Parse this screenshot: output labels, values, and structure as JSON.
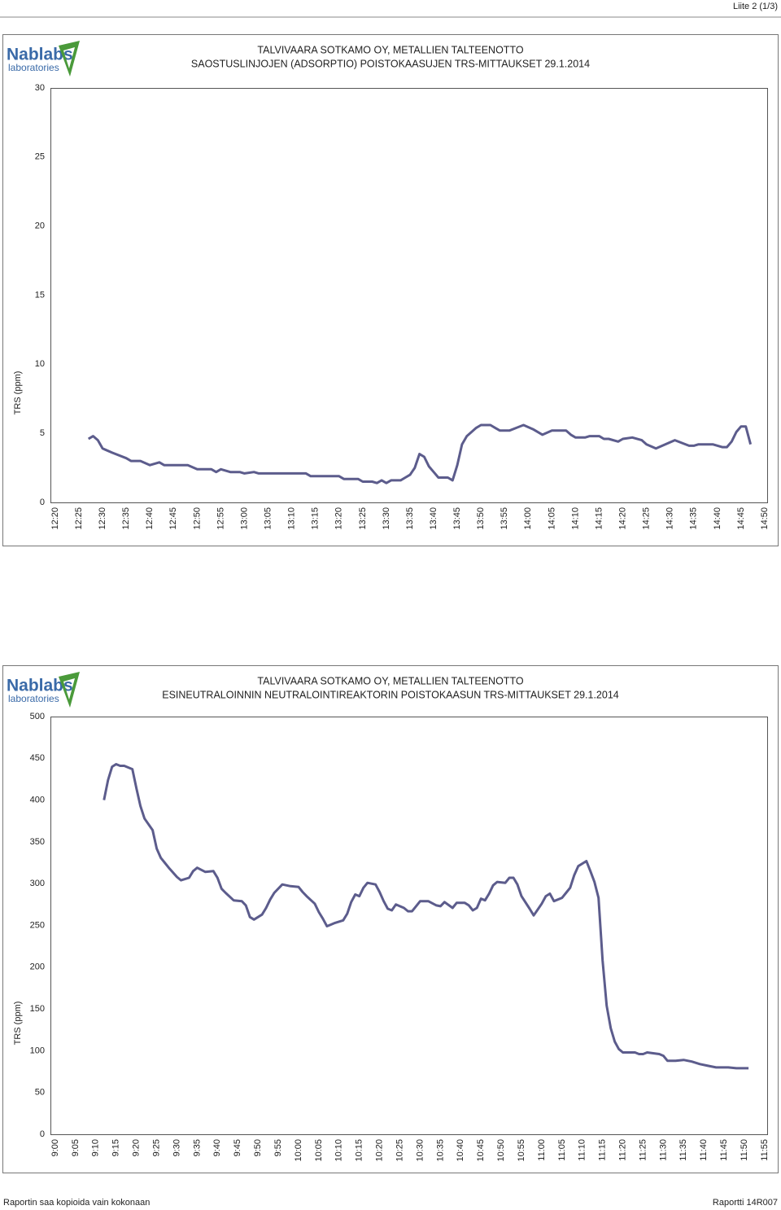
{
  "header": {
    "page": "Liite 2 (1/3)"
  },
  "logo": {
    "name": "Nablabs",
    "sub": "laboratories"
  },
  "chart_data": [
    {
      "type": "line",
      "title": "TALVIVAARA SOTKAMO OY, METALLIEN TALTEENOTTO",
      "subtitle": "SAOSTUSLINJOJEN (ADSORPTIO) POISTOKAASUJEN TRS-MITTAUKSET 29.1.2014",
      "y_label": "TRS (ppm)",
      "color": "#5c5c8c",
      "x": [
        "12:27",
        "12:28",
        "12:29",
        "12:30",
        "12:32",
        "12:35",
        "12:36",
        "12:38",
        "12:40",
        "12:42",
        "12:43",
        "12:48",
        "12:50",
        "12:53",
        "12:54",
        "12:55",
        "12:57",
        "12:59",
        "13:00",
        "13:02",
        "13:03",
        "13:13",
        "13:14",
        "13:20",
        "13:21",
        "13:24",
        "13:25",
        "13:27",
        "13:28",
        "13:29",
        "13:30",
        "13:31",
        "13:33",
        "13:34",
        "13:35",
        "13:36",
        "13:37",
        "13:38",
        "13:39",
        "13:40",
        "13:41",
        "13:43",
        "13:44",
        "13:45",
        "13:46",
        "13:47",
        "13:49",
        "13:50",
        "13:52",
        "13:53",
        "13:54",
        "13:56",
        "13:59",
        "14:01",
        "14:03",
        "14:05",
        "14:08",
        "14:09",
        "14:10",
        "14:12",
        "14:13",
        "14:15",
        "14:16",
        "14:17",
        "14:19",
        "14:20",
        "14:22",
        "14:24",
        "14:25",
        "14:27",
        "14:31",
        "14:34",
        "14:35",
        "14:36",
        "14:39",
        "14:41",
        "14:42",
        "14:43",
        "14:44",
        "14:45",
        "14:46",
        "14:47"
      ],
      "values": [
        4.6,
        4.8,
        4.5,
        3.9,
        3.6,
        3.2,
        3.0,
        3.0,
        2.7,
        2.9,
        2.7,
        2.7,
        2.4,
        2.4,
        2.2,
        2.4,
        2.2,
        2.2,
        2.1,
        2.2,
        2.1,
        2.1,
        1.9,
        1.9,
        1.7,
        1.7,
        1.5,
        1.5,
        1.4,
        1.6,
        1.4,
        1.6,
        1.6,
        1.8,
        2.0,
        2.5,
        3.5,
        3.3,
        2.6,
        2.2,
        1.8,
        1.8,
        1.6,
        2.7,
        4.2,
        4.8,
        5.4,
        5.6,
        5.6,
        5.4,
        5.2,
        5.2,
        5.6,
        5.3,
        4.9,
        5.2,
        5.2,
        4.9,
        4.7,
        4.7,
        4.8,
        4.8,
        4.6,
        4.6,
        4.4,
        4.6,
        4.7,
        4.5,
        4.2,
        3.9,
        4.5,
        4.1,
        4.1,
        4.2,
        4.2,
        4.0,
        4.0,
        4.4,
        5.1,
        5.5,
        5.5,
        4.2
      ],
      "xlim": [
        "12:20",
        "14:50"
      ],
      "xticks": [
        "12:20",
        "12:25",
        "12:30",
        "12:35",
        "12:40",
        "12:45",
        "12:50",
        "12:55",
        "13:00",
        "13:05",
        "13:10",
        "13:15",
        "13:20",
        "13:25",
        "13:30",
        "13:35",
        "13:40",
        "13:45",
        "13:50",
        "13:55",
        "14:00",
        "14:05",
        "14:10",
        "14:15",
        "14:20",
        "14:25",
        "14:30",
        "14:35",
        "14:40",
        "14:45",
        "14:50"
      ],
      "ylim": [
        0,
        30
      ],
      "yticks": [
        0,
        5,
        10,
        15,
        20,
        25,
        30
      ],
      "grid": false
    },
    {
      "type": "line",
      "title": "TALVIVAARA SOTKAMO OY, METALLIEN TALTEENOTTO",
      "subtitle": "ESINEUTRALOINNIN NEUTRALOINTIREAKTORIN POISTOKAASUN TRS-MITTAUKSET 29.1.2014",
      "y_label": "TRS (ppm)",
      "color": "#5c5c8c",
      "x": [
        "9:12",
        "9:13",
        "9:14",
        "9:15",
        "9:16",
        "9:17",
        "9:19",
        "9:20",
        "9:21",
        "9:22",
        "9:24",
        "9:25",
        "9:26",
        "9:27",
        "9:28",
        "9:30",
        "9:31",
        "9:33",
        "9:34",
        "9:35",
        "9:37",
        "9:39",
        "9:40",
        "9:41",
        "9:42",
        "9:44",
        "9:46",
        "9:47",
        "9:48",
        "9:49",
        "9:51",
        "9:52",
        "9:53",
        "9:54",
        "9:56",
        "9:58",
        "10:00",
        "10:01",
        "10:02",
        "10:04",
        "10:05",
        "10:06",
        "10:07",
        "10:08",
        "10:09",
        "10:11",
        "10:12",
        "10:13",
        "10:14",
        "10:15",
        "10:16",
        "10:17",
        "10:19",
        "10:20",
        "10:21",
        "10:22",
        "10:23",
        "10:24",
        "10:25",
        "10:26",
        "10:27",
        "10:28",
        "10:30",
        "10:32",
        "10:34",
        "10:35",
        "10:36",
        "10:38",
        "10:39",
        "10:41",
        "10:42",
        "10:43",
        "10:44",
        "10:45",
        "10:46",
        "10:47",
        "10:48",
        "10:49",
        "10:51",
        "10:52",
        "10:53",
        "10:54",
        "10:55",
        "10:57",
        "10:58",
        "10:59",
        "11:00",
        "11:01",
        "11:02",
        "11:03",
        "11:05",
        "11:06",
        "11:07",
        "11:08",
        "11:09",
        "11:11",
        "11:12",
        "11:13",
        "11:14",
        "11:15",
        "11:16",
        "11:17",
        "11:18",
        "11:19",
        "11:20",
        "11:23",
        "11:24",
        "11:25",
        "11:26",
        "11:29",
        "11:30",
        "11:31",
        "11:33",
        "11:35",
        "11:37",
        "11:39",
        "11:41",
        "11:43",
        "11:46",
        "11:48",
        "11:51"
      ],
      "values": [
        400,
        424,
        440,
        443,
        441,
        441,
        437,
        414,
        393,
        378,
        364,
        342,
        331,
        325,
        319,
        308,
        304,
        307,
        315,
        319,
        314,
        315,
        307,
        294,
        289,
        280,
        279,
        274,
        260,
        257,
        263,
        271,
        281,
        289,
        299,
        297,
        296,
        290,
        285,
        276,
        266,
        258,
        249,
        251,
        253,
        256,
        264,
        278,
        287,
        285,
        295,
        301,
        299,
        290,
        279,
        270,
        268,
        275,
        273,
        271,
        267,
        267,
        279,
        279,
        274,
        273,
        278,
        271,
        277,
        277,
        274,
        268,
        271,
        282,
        280,
        288,
        298,
        302,
        301,
        307,
        307,
        299,
        285,
        270,
        262,
        269,
        276,
        285,
        288,
        279,
        283,
        289,
        295,
        310,
        321,
        327,
        315,
        302,
        283,
        208,
        154,
        127,
        111,
        102,
        98,
        98,
        96,
        96,
        98,
        96,
        94,
        88,
        88,
        89,
        87,
        84,
        82,
        80,
        80,
        79,
        79
      ],
      "xlim": [
        "9:00",
        "11:55"
      ],
      "xticks": [
        "9:00",
        "9:05",
        "9:10",
        "9:15",
        "9:20",
        "9:25",
        "9:30",
        "9:35",
        "9:40",
        "9:45",
        "9:50",
        "9:55",
        "10:00",
        "10:05",
        "10:10",
        "10:15",
        "10:20",
        "10:25",
        "10:30",
        "10:35",
        "10:40",
        "10:45",
        "10:50",
        "10:55",
        "11:00",
        "11:05",
        "11:10",
        "11:15",
        "11:20",
        "11:25",
        "11:30",
        "11:35",
        "11:40",
        "11:45",
        "11:50",
        "11:55"
      ],
      "ylim": [
        0,
        500
      ],
      "yticks": [
        0,
        50,
        100,
        150,
        200,
        250,
        300,
        350,
        400,
        450,
        500
      ],
      "grid": false
    }
  ],
  "footer": {
    "left": "Raportin saa kopioida vain kokonaan",
    "right": "Raportti 14R007"
  }
}
